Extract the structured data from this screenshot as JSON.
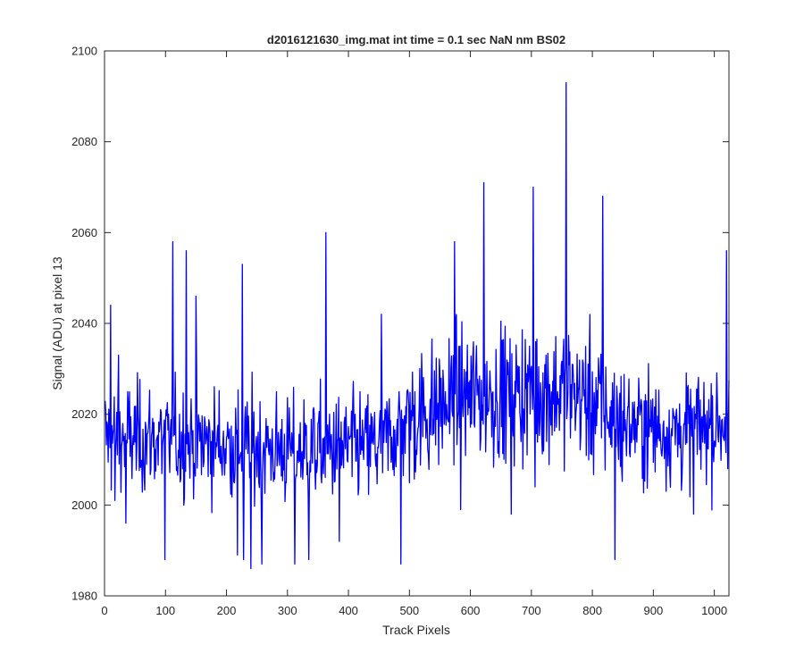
{
  "chart_data": {
    "type": "line",
    "title": "d2016121630_img.mat int time = 0.1 sec  NaN nm BS02",
    "xlabel": "Track Pixels",
    "ylabel": "Signal (ADU) at pixel 13",
    "xlim": [
      0,
      1024
    ],
    "ylim": [
      1980,
      2100
    ],
    "xticks": [
      0,
      100,
      200,
      300,
      400,
      500,
      600,
      700,
      800,
      900,
      1000
    ],
    "yticks": [
      1980,
      2000,
      2020,
      2040,
      2060,
      2080,
      2100
    ],
    "grid": false,
    "legend": "none",
    "line_color": "#0000ff",
    "trend": [
      [
        0,
        2015
      ],
      [
        150,
        2014
      ],
      [
        300,
        2012
      ],
      [
        450,
        2013
      ],
      [
        500,
        2019
      ],
      [
        600,
        2024
      ],
      [
        700,
        2025
      ],
      [
        770,
        2025
      ],
      [
        850,
        2018
      ],
      [
        950,
        2016
      ],
      [
        1024,
        2019
      ]
    ],
    "peaks": [
      [
        10,
        2044
      ],
      [
        17,
        2001
      ],
      [
        23,
        2033
      ],
      [
        35,
        1996
      ],
      [
        99,
        1988
      ],
      [
        112,
        2058
      ],
      [
        134,
        2056
      ],
      [
        150,
        2046
      ],
      [
        218,
        1989
      ],
      [
        226,
        2053
      ],
      [
        228,
        1988
      ],
      [
        240,
        1986
      ],
      [
        258,
        1987
      ],
      [
        312,
        1987
      ],
      [
        335,
        1988
      ],
      [
        363,
        2060
      ],
      [
        385,
        1992
      ],
      [
        454,
        2042
      ],
      [
        486,
        1987
      ],
      [
        574,
        2058
      ],
      [
        584,
        1999
      ],
      [
        622,
        2071
      ],
      [
        667,
        1998
      ],
      [
        703,
        2070
      ],
      [
        706,
        2004
      ],
      [
        757,
        2093
      ],
      [
        817,
        2068
      ],
      [
        837,
        1988
      ],
      [
        966,
        1998
      ],
      [
        1020,
        2056
      ],
      [
        1022,
        2008
      ]
    ]
  }
}
